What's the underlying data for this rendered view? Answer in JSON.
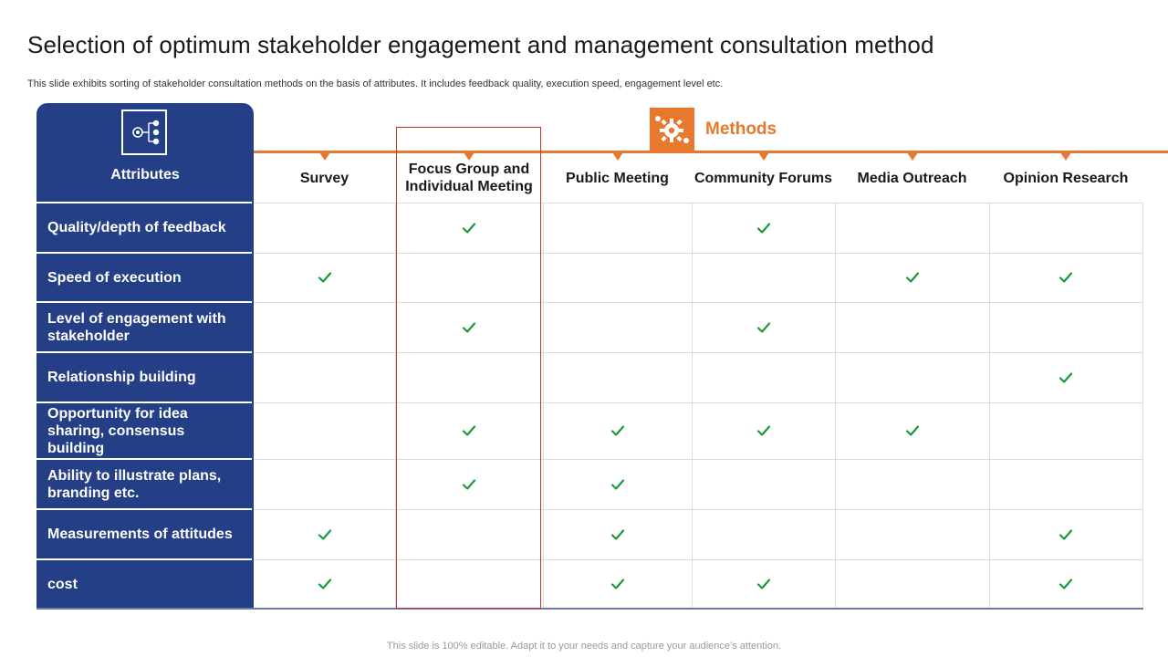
{
  "title": "Selection of optimum stakeholder engagement and management consultation method",
  "subtitle": "This slide exhibits sorting of stakeholder consultation methods on the basis of attributes. It includes feedback quality, execution speed, engagement level etc.",
  "footer": "This slide is 100% editable. Adapt it to your needs and capture your audience’s attention.",
  "colors": {
    "navy": "#253f87",
    "orange": "#e8782d",
    "check": "#1a9a3a",
    "highlight": "#c0392b"
  },
  "icons": {
    "attributes": "network-diagram-icon",
    "methods": "gears-icon",
    "cell": "checkmark-icon"
  },
  "table": {
    "attributes_header": "Attributes",
    "methods_header": "Methods",
    "columns": [
      "Survey",
      "Focus Group and Individual Meeting",
      "Public Meeting",
      "Community Forums",
      "Media Outreach",
      "Opinion Research"
    ],
    "highlighted_column": "Focus Group and Individual Meeting",
    "rows": [
      {
        "attribute": "Quality/depth of feedback",
        "checks": [
          false,
          true,
          false,
          true,
          false,
          false
        ]
      },
      {
        "attribute": "Speed of execution",
        "checks": [
          true,
          false,
          false,
          false,
          true,
          true
        ]
      },
      {
        "attribute": "Level of engagement with stakeholder",
        "checks": [
          false,
          true,
          false,
          true,
          false,
          false
        ]
      },
      {
        "attribute": "Relationship building",
        "checks": [
          false,
          false,
          false,
          false,
          false,
          true
        ]
      },
      {
        "attribute": "Opportunity for idea sharing, consensus building",
        "checks": [
          false,
          true,
          true,
          true,
          true,
          false
        ]
      },
      {
        "attribute": "Ability to illustrate plans, branding etc.",
        "checks": [
          false,
          true,
          true,
          false,
          false,
          false
        ]
      },
      {
        "attribute": "Measurements of attitudes",
        "checks": [
          true,
          false,
          true,
          false,
          false,
          true
        ]
      },
      {
        "attribute": "cost",
        "checks": [
          true,
          false,
          true,
          true,
          false,
          true
        ]
      }
    ]
  }
}
